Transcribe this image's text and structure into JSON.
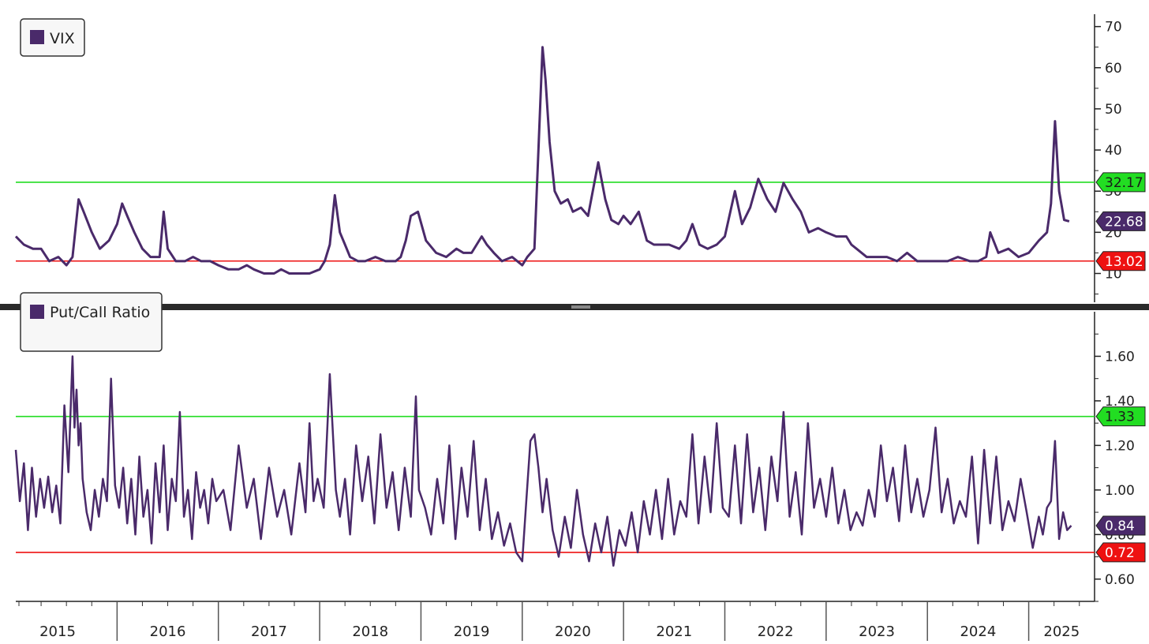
{
  "chart_data": [
    {
      "type": "line",
      "title": "",
      "legend": {
        "label": "VIX",
        "placement": "top-left"
      },
      "ylim": [
        3,
        73
      ],
      "y_ticks": [
        10,
        20,
        30,
        40,
        50,
        60,
        70
      ],
      "axis_side": "right",
      "colors": {
        "series": "#4a2a6a",
        "upper": "#22dd22",
        "lower": "#ee1111"
      },
      "reference_lines": [
        {
          "value": 32.17,
          "label": "32.17",
          "color": "#22dd22"
        },
        {
          "value": 13.02,
          "label": "13.02",
          "color": "#ee1111"
        }
      ],
      "last_value": {
        "value": 22.68,
        "label": "22.68"
      },
      "series": [
        {
          "name": "VIX",
          "x": [
            2015.0,
            2015.08,
            2015.17,
            2015.25,
            2015.33,
            2015.42,
            2015.5,
            2015.56,
            2015.62,
            2015.67,
            2015.75,
            2015.83,
            2015.92,
            2016.0,
            2016.05,
            2016.1,
            2016.17,
            2016.25,
            2016.33,
            2016.42,
            2016.46,
            2016.5,
            2016.58,
            2016.67,
            2016.75,
            2016.83,
            2016.92,
            2017.0,
            2017.1,
            2017.2,
            2017.28,
            2017.35,
            2017.45,
            2017.55,
            2017.62,
            2017.7,
            2017.8,
            2017.9,
            2018.0,
            2018.05,
            2018.1,
            2018.15,
            2018.2,
            2018.25,
            2018.3,
            2018.38,
            2018.45,
            2018.55,
            2018.65,
            2018.75,
            2018.8,
            2018.85,
            2018.9,
            2018.97,
            2019.05,
            2019.15,
            2019.25,
            2019.35,
            2019.42,
            2019.5,
            2019.6,
            2019.65,
            2019.72,
            2019.8,
            2019.9,
            2020.0,
            2020.05,
            2020.12,
            2020.16,
            2020.2,
            2020.23,
            2020.27,
            2020.32,
            2020.38,
            2020.45,
            2020.5,
            2020.58,
            2020.65,
            2020.75,
            2020.82,
            2020.88,
            2020.95,
            2021.0,
            2021.07,
            2021.15,
            2021.23,
            2021.3,
            2021.38,
            2021.45,
            2021.55,
            2021.62,
            2021.68,
            2021.75,
            2021.83,
            2021.92,
            2022.0,
            2022.1,
            2022.17,
            2022.25,
            2022.33,
            2022.42,
            2022.5,
            2022.58,
            2022.67,
            2022.75,
            2022.83,
            2022.92,
            2023.0,
            2023.1,
            2023.2,
            2023.25,
            2023.3,
            2023.4,
            2023.5,
            2023.6,
            2023.7,
            2023.8,
            2023.9,
            2024.0,
            2024.1,
            2024.2,
            2024.3,
            2024.42,
            2024.5,
            2024.58,
            2024.62,
            2024.7,
            2024.8,
            2024.9,
            2025.0,
            2025.1,
            2025.18,
            2025.22,
            2025.26,
            2025.3,
            2025.35,
            2025.4
          ],
          "values": [
            19,
            17,
            16,
            16,
            13,
            14,
            12,
            14,
            28,
            25,
            20,
            16,
            18,
            22,
            27,
            24,
            20,
            16,
            14,
            14,
            25,
            16,
            13,
            13,
            14,
            13,
            13,
            12,
            11,
            11,
            12,
            11,
            10,
            10,
            11,
            10,
            10,
            10,
            11,
            13,
            17,
            29,
            20,
            17,
            14,
            13,
            13,
            14,
            13,
            13,
            14,
            18,
            24,
            25,
            18,
            15,
            14,
            16,
            15,
            15,
            19,
            17,
            15,
            13,
            14,
            12,
            14,
            16,
            40,
            65,
            57,
            42,
            30,
            27,
            28,
            25,
            26,
            24,
            37,
            28,
            23,
            22,
            24,
            22,
            25,
            18,
            17,
            17,
            17,
            16,
            18,
            22,
            17,
            16,
            17,
            19,
            30,
            22,
            26,
            33,
            28,
            25,
            32,
            28,
            25,
            20,
            21,
            20,
            19,
            19,
            17,
            16,
            14,
            14,
            14,
            13,
            15,
            13,
            13,
            13,
            13,
            14,
            13,
            13,
            14,
            20,
            15,
            16,
            14,
            15,
            18,
            20,
            27,
            47,
            30,
            23,
            22.68
          ]
        }
      ]
    },
    {
      "type": "line",
      "title": "",
      "legend": {
        "label": "Put/Call Ratio",
        "placement": "top-left"
      },
      "ylim": [
        0.5,
        1.8
      ],
      "y_ticks": [
        "0.60",
        "0.80",
        "1.00",
        "1.20",
        "1.40",
        "1.60"
      ],
      "axis_side": "right",
      "colors": {
        "series": "#4a2a6a",
        "upper": "#22dd22",
        "lower": "#ee1111"
      },
      "reference_lines": [
        {
          "value": 1.33,
          "label": "1.33",
          "color": "#22dd22"
        },
        {
          "value": 0.72,
          "label": "0.72",
          "color": "#ee1111"
        }
      ],
      "last_value": {
        "value": 0.84,
        "label": "0.84"
      },
      "series": [
        {
          "name": "Put/Call Ratio",
          "x": [
            2015.0,
            2015.04,
            2015.08,
            2015.12,
            2015.16,
            2015.2,
            2015.24,
            2015.28,
            2015.32,
            2015.36,
            2015.4,
            2015.44,
            2015.48,
            2015.52,
            2015.56,
            2015.58,
            2015.6,
            2015.62,
            2015.64,
            2015.66,
            2015.7,
            2015.74,
            2015.78,
            2015.82,
            2015.86,
            2015.9,
            2015.94,
            2015.98,
            2016.02,
            2016.06,
            2016.1,
            2016.14,
            2016.18,
            2016.22,
            2016.26,
            2016.3,
            2016.34,
            2016.38,
            2016.42,
            2016.46,
            2016.5,
            2016.54,
            2016.58,
            2016.62,
            2016.66,
            2016.7,
            2016.74,
            2016.78,
            2016.82,
            2016.86,
            2016.9,
            2016.94,
            2016.98,
            2017.05,
            2017.12,
            2017.2,
            2017.28,
            2017.35,
            2017.42,
            2017.5,
            2017.58,
            2017.65,
            2017.72,
            2017.8,
            2017.86,
            2017.9,
            2017.94,
            2017.98,
            2018.04,
            2018.1,
            2018.16,
            2018.2,
            2018.25,
            2018.3,
            2018.36,
            2018.42,
            2018.48,
            2018.54,
            2018.6,
            2018.66,
            2018.72,
            2018.78,
            2018.84,
            2018.9,
            2018.95,
            2018.98,
            2019.04,
            2019.1,
            2019.16,
            2019.22,
            2019.28,
            2019.34,
            2019.4,
            2019.46,
            2019.52,
            2019.58,
            2019.64,
            2019.7,
            2019.76,
            2019.82,
            2019.88,
            2019.94,
            2020.0,
            2020.04,
            2020.08,
            2020.12,
            2020.16,
            2020.2,
            2020.24,
            2020.3,
            2020.36,
            2020.42,
            2020.48,
            2020.54,
            2020.6,
            2020.66,
            2020.72,
            2020.78,
            2020.84,
            2020.9,
            2020.96,
            2021.02,
            2021.08,
            2021.14,
            2021.2,
            2021.26,
            2021.32,
            2021.38,
            2021.44,
            2021.5,
            2021.56,
            2021.62,
            2021.68,
            2021.74,
            2021.8,
            2021.86,
            2021.92,
            2021.98,
            2022.04,
            2022.1,
            2022.16,
            2022.22,
            2022.28,
            2022.34,
            2022.4,
            2022.46,
            2022.52,
            2022.58,
            2022.64,
            2022.7,
            2022.76,
            2022.82,
            2022.88,
            2022.94,
            2023.0,
            2023.06,
            2023.12,
            2023.18,
            2023.24,
            2023.3,
            2023.36,
            2023.42,
            2023.48,
            2023.54,
            2023.6,
            2023.66,
            2023.72,
            2023.78,
            2023.84,
            2023.9,
            2023.96,
            2024.02,
            2024.08,
            2024.14,
            2024.2,
            2024.26,
            2024.32,
            2024.38,
            2024.44,
            2024.5,
            2024.56,
            2024.62,
            2024.68,
            2024.74,
            2024.8,
            2024.86,
            2024.92,
            2024.98,
            2025.04,
            2025.1,
            2025.14,
            2025.18,
            2025.22,
            2025.26,
            2025.3,
            2025.34,
            2025.38,
            2025.42
          ],
          "values": [
            1.18,
            0.95,
            1.12,
            0.82,
            1.1,
            0.88,
            1.05,
            0.92,
            1.06,
            0.9,
            1.02,
            0.85,
            1.38,
            1.08,
            1.6,
            1.28,
            1.45,
            1.2,
            1.3,
            1.05,
            0.9,
            0.82,
            1.0,
            0.88,
            1.05,
            0.95,
            1.5,
            1.02,
            0.92,
            1.1,
            0.85,
            1.05,
            0.8,
            1.15,
            0.88,
            1.0,
            0.76,
            1.12,
            0.9,
            1.2,
            0.82,
            1.05,
            0.95,
            1.35,
            0.88,
            1.0,
            0.78,
            1.08,
            0.92,
            1.0,
            0.85,
            1.05,
            0.95,
            1.0,
            0.82,
            1.2,
            0.92,
            1.05,
            0.78,
            1.1,
            0.88,
            1.0,
            0.8,
            1.12,
            0.9,
            1.3,
            0.95,
            1.05,
            0.92,
            1.52,
            1.0,
            0.88,
            1.05,
            0.8,
            1.2,
            0.95,
            1.15,
            0.85,
            1.25,
            0.92,
            1.08,
            0.82,
            1.1,
            0.88,
            1.42,
            1.0,
            0.92,
            0.8,
            1.05,
            0.85,
            1.2,
            0.78,
            1.1,
            0.88,
            1.22,
            0.82,
            1.05,
            0.78,
            0.9,
            0.75,
            0.85,
            0.72,
            0.68,
            0.95,
            1.22,
            1.25,
            1.1,
            0.9,
            1.05,
            0.82,
            0.7,
            0.88,
            0.74,
            1.0,
            0.8,
            0.68,
            0.85,
            0.72,
            0.88,
            0.66,
            0.82,
            0.75,
            0.9,
            0.72,
            0.95,
            0.8,
            1.0,
            0.78,
            1.05,
            0.8,
            0.95,
            0.88,
            1.25,
            0.85,
            1.15,
            0.9,
            1.3,
            0.92,
            0.88,
            1.2,
            0.85,
            1.25,
            0.9,
            1.1,
            0.82,
            1.15,
            0.95,
            1.35,
            0.88,
            1.08,
            0.8,
            1.3,
            0.92,
            1.05,
            0.88,
            1.1,
            0.85,
            1.0,
            0.82,
            0.9,
            0.84,
            1.0,
            0.88,
            1.2,
            0.95,
            1.1,
            0.86,
            1.2,
            0.9,
            1.05,
            0.88,
            1.0,
            1.28,
            0.9,
            1.05,
            0.85,
            0.95,
            0.88,
            1.15,
            0.76,
            1.18,
            0.85,
            1.15,
            0.82,
            0.95,
            0.86,
            1.05,
            0.9,
            0.74,
            0.88,
            0.8,
            0.92,
            0.95,
            1.22,
            0.78,
            0.9,
            0.82,
            0.84
          ]
        }
      ]
    }
  ],
  "x_axis": {
    "years": [
      "2015",
      "2016",
      "2017",
      "2018",
      "2019",
      "2020",
      "2021",
      "2022",
      "2023",
      "2024",
      "2025"
    ],
    "xlim": [
      2015.0,
      2025.65
    ]
  }
}
